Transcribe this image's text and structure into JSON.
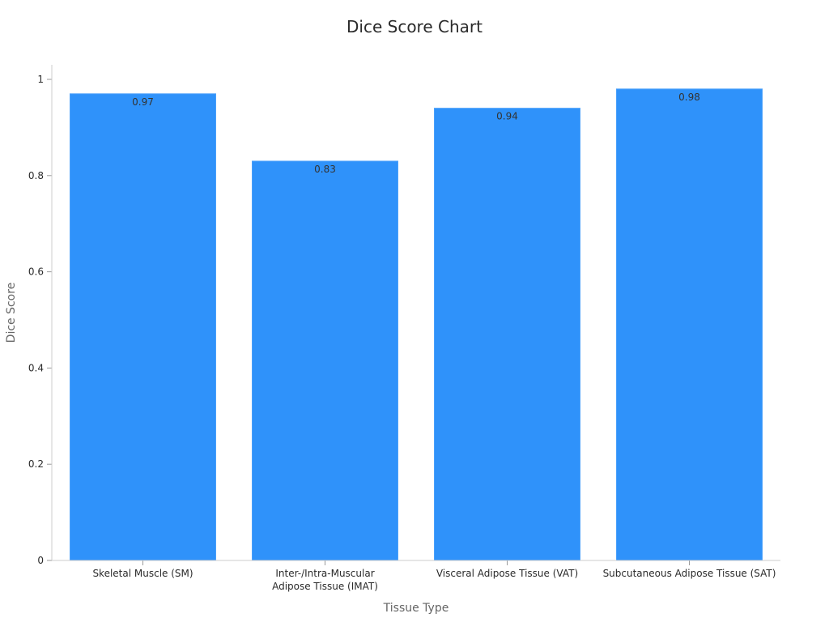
{
  "chart_data": {
    "type": "bar",
    "title": "Dice Score Chart",
    "xlabel": "Tissue Type",
    "ylabel": "Dice Score",
    "categories": [
      [
        "Skeletal Muscle (SM)"
      ],
      [
        "Inter-/Intra-Muscular",
        "Adipose Tissue (IMAT)"
      ],
      [
        "Visceral Adipose Tissue (VAT)"
      ],
      [
        "Subcutaneous Adipose Tissue (SAT)"
      ]
    ],
    "values": [
      0.97,
      0.83,
      0.94,
      0.98
    ],
    "data_labels": [
      "0.97",
      "0.83",
      "0.94",
      "0.98"
    ],
    "ylim": [
      0,
      1
    ],
    "yticks": [
      0,
      0.2,
      0.4,
      0.6,
      0.8,
      1
    ],
    "ytick_labels": [
      "0",
      "0.2",
      "0.4",
      "0.6",
      "0.8",
      "1"
    ],
    "grid": false,
    "legend": "none",
    "bar_color": "#2f92fa"
  }
}
